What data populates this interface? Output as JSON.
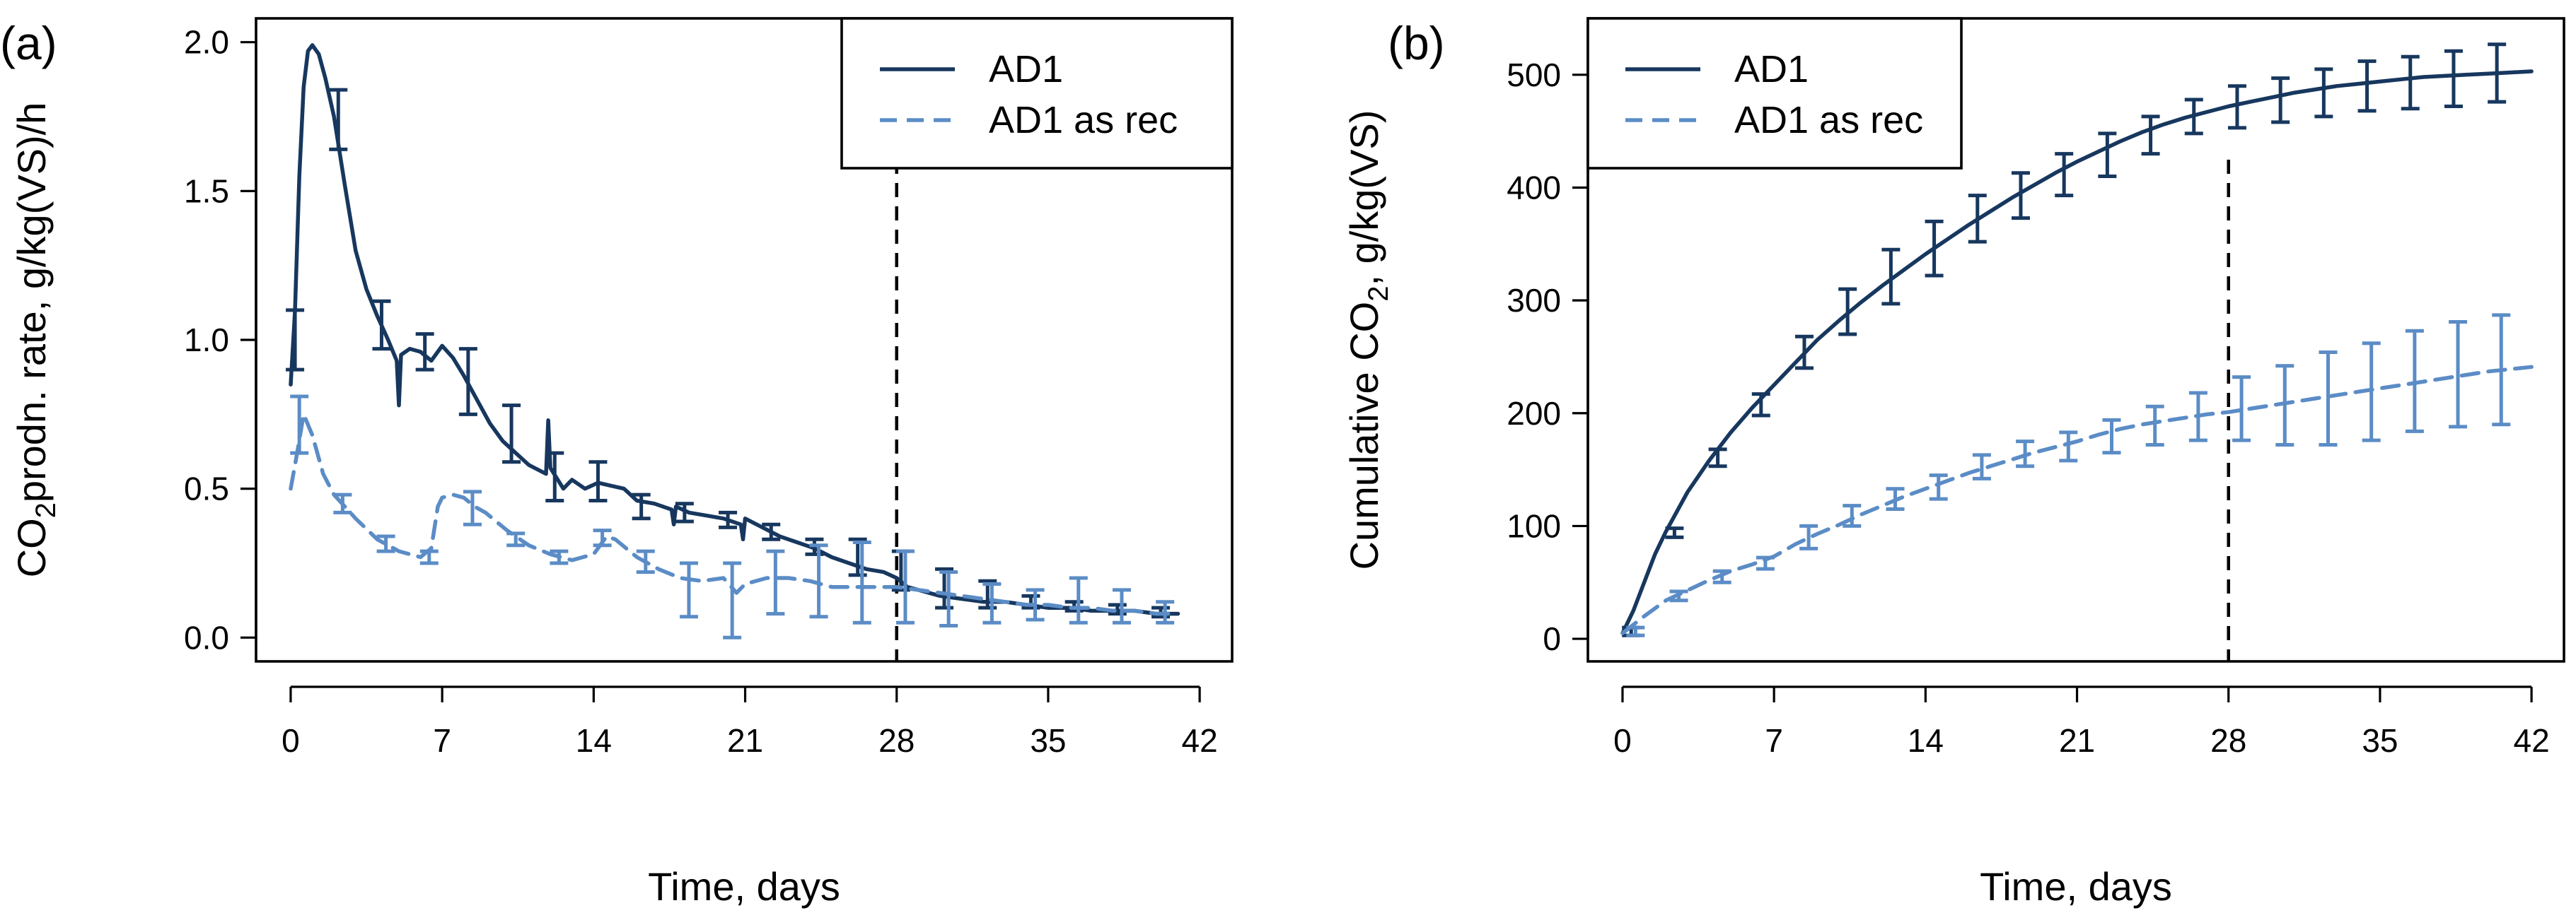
{
  "chart_data": [
    {
      "panel": "(a)",
      "type": "line",
      "xlabel": "Time, days",
      "ylabel_main": "CO",
      "ylabel_sub": "2",
      "ylabel_rest": "prodn. rate, g/kg(VS)/h",
      "xlim": [
        -1.6,
        43.5
      ],
      "ylim": [
        -0.08,
        2.08
      ],
      "x_ticks": [
        0,
        7,
        14,
        21,
        28,
        35,
        42
      ],
      "x_tick_labels": [
        "0",
        "7",
        "14",
        "21",
        "28",
        "35",
        "42"
      ],
      "y_ticks": [
        0,
        0.5,
        1,
        1.5,
        2
      ],
      "y_tick_labels": [
        "0.0",
        "0.5",
        "1.0",
        "1.5",
        "2.0"
      ],
      "vline_x": 28,
      "legend_position": "top-right",
      "series": [
        {
          "name": "AD1",
          "style": "solid",
          "color": "#17375e",
          "x": [
            0,
            0.2,
            0.4,
            0.6,
            0.8,
            1.0,
            1.3,
            1.6,
            2.0,
            2.5,
            3.0,
            3.5,
            4.0,
            4.5,
            4.9,
            5.0,
            5.1,
            5.5,
            6.0,
            6.5,
            7.0,
            7.5,
            8.0,
            8.6,
            9.2,
            9.8,
            10.4,
            11.0,
            11.8,
            11.9,
            12.0,
            12.6,
            13.0,
            13.6,
            14.2,
            14.8,
            15.4,
            16.0,
            16.8,
            17.6,
            17.7,
            17.8,
            18.4,
            19.2,
            20.0,
            20.8,
            20.9,
            21.0,
            21.8,
            22.6,
            23.4,
            24.2,
            25.0,
            25.8,
            26.6,
            27.4,
            28.0,
            28.5,
            29.0,
            30,
            31,
            32,
            33,
            34,
            35,
            36,
            37,
            38,
            39,
            40,
            41
          ],
          "y": [
            0.85,
            1.1,
            1.55,
            1.85,
            1.97,
            1.99,
            1.96,
            1.88,
            1.75,
            1.52,
            1.3,
            1.17,
            1.08,
            1.0,
            0.93,
            0.78,
            0.95,
            0.97,
            0.96,
            0.93,
            0.98,
            0.94,
            0.88,
            0.8,
            0.72,
            0.66,
            0.62,
            0.58,
            0.55,
            0.73,
            0.57,
            0.5,
            0.53,
            0.5,
            0.52,
            0.51,
            0.5,
            0.46,
            0.45,
            0.43,
            0.38,
            0.44,
            0.42,
            0.41,
            0.4,
            0.38,
            0.33,
            0.4,
            0.37,
            0.34,
            0.32,
            0.3,
            0.27,
            0.25,
            0.23,
            0.22,
            0.2,
            0.17,
            0.16,
            0.14,
            0.13,
            0.12,
            0.12,
            0.11,
            0.1,
            0.1,
            0.09,
            0.09,
            0.09,
            0.08,
            0.08
          ],
          "err_x": [
            0.2,
            2.2,
            4.2,
            6.2,
            8.2,
            10.2,
            12.2,
            14.2,
            16.2,
            18.2,
            20.2,
            22.2,
            24.2,
            26.2,
            28.2,
            30.2,
            32.2,
            34.2,
            36.2,
            38.2,
            40.2
          ],
          "err_low": [
            0.9,
            1.64,
            0.97,
            0.9,
            0.75,
            0.59,
            0.46,
            0.46,
            0.4,
            0.39,
            0.37,
            0.33,
            0.28,
            0.21,
            0.16,
            0.1,
            0.1,
            0.1,
            0.09,
            0.08,
            0.07
          ],
          "err_high": [
            1.1,
            1.84,
            1.13,
            1.02,
            0.97,
            0.78,
            0.62,
            0.59,
            0.48,
            0.45,
            0.42,
            0.38,
            0.33,
            0.33,
            0.29,
            0.23,
            0.19,
            0.14,
            0.12,
            0.11,
            0.1
          ]
        },
        {
          "name": "AD1 as rec",
          "style": "dashed",
          "color": "#5b8cc6",
          "x": [
            0,
            0.3,
            0.6,
            1.0,
            1.5,
            2.0,
            2.5,
            3.0,
            4.0,
            5.0,
            6.0,
            6.5,
            6.8,
            7.0,
            7.5,
            8.0,
            8.5,
            9.0,
            10.0,
            11.0,
            12.0,
            13.0,
            14.0,
            14.6,
            15.0,
            16.0,
            17.0,
            18.0,
            19.0,
            20.0,
            20.6,
            21.0,
            22.0,
            23.0,
            24.0,
            25.0,
            26.0,
            27.0,
            28.0,
            29.0,
            30,
            31,
            32,
            33,
            34,
            35,
            36,
            37,
            38,
            39,
            40,
            41
          ],
          "y": [
            0.5,
            0.62,
            0.75,
            0.68,
            0.55,
            0.48,
            0.44,
            0.4,
            0.33,
            0.29,
            0.27,
            0.3,
            0.44,
            0.47,
            0.48,
            0.47,
            0.44,
            0.42,
            0.36,
            0.31,
            0.28,
            0.26,
            0.28,
            0.34,
            0.33,
            0.27,
            0.23,
            0.2,
            0.19,
            0.2,
            0.15,
            0.18,
            0.2,
            0.2,
            0.19,
            0.17,
            0.17,
            0.17,
            0.17,
            0.16,
            0.15,
            0.14,
            0.13,
            0.12,
            0.11,
            0.11,
            0.1,
            0.1,
            0.09,
            0.09,
            0.08,
            0.08
          ],
          "err_x": [
            0.4,
            2.4,
            4.4,
            6.4,
            8.4,
            10.4,
            12.4,
            14.4,
            16.4,
            18.4,
            20.4,
            22.4,
            24.4,
            26.4,
            28.4,
            30.4,
            32.4,
            34.4,
            36.4,
            38.4,
            40.4
          ],
          "err_low": [
            0.62,
            0.42,
            0.29,
            0.25,
            0.38,
            0.31,
            0.25,
            0.31,
            0.22,
            0.07,
            0.0,
            0.08,
            0.07,
            0.05,
            0.05,
            0.04,
            0.05,
            0.06,
            0.05,
            0.05,
            0.05
          ],
          "err_high": [
            0.81,
            0.48,
            0.34,
            0.29,
            0.49,
            0.35,
            0.29,
            0.36,
            0.29,
            0.25,
            0.25,
            0.29,
            0.31,
            0.32,
            0.29,
            0.22,
            0.18,
            0.16,
            0.2,
            0.16,
            0.12
          ]
        }
      ]
    },
    {
      "panel": "(b)",
      "type": "line",
      "xlabel": "Time, days",
      "ylabel_main": "Cumulative CO",
      "ylabel_sub": "2",
      "ylabel_rest": ", g/kg(VS)",
      "xlim": [
        -1.6,
        43.5
      ],
      "ylim": [
        -20,
        550
      ],
      "x_ticks": [
        0,
        7,
        14,
        21,
        28,
        35,
        42
      ],
      "x_tick_labels": [
        "0",
        "7",
        "14",
        "21",
        "28",
        "35",
        "42"
      ],
      "y_ticks": [
        0,
        100,
        200,
        300,
        400,
        500
      ],
      "y_tick_labels": [
        "0",
        "100",
        "200",
        "300",
        "400",
        "500"
      ],
      "vline_x": 28,
      "legend_position": "top-left",
      "series": [
        {
          "name": "AD1",
          "style": "solid",
          "color": "#17375e",
          "x": [
            0,
            0.5,
            1.0,
            1.5,
            2.0,
            3.0,
            4.0,
            5.0,
            6.0,
            7.0,
            8.0,
            9.0,
            10,
            11,
            12,
            13,
            14,
            15,
            16,
            17,
            18,
            19,
            20,
            21,
            22,
            23,
            24,
            25,
            26,
            27,
            28,
            29,
            30,
            31,
            32,
            33,
            34,
            35,
            36,
            37,
            38,
            39,
            40,
            41,
            42
          ],
          "y": [
            5,
            25,
            50,
            75,
            95,
            130,
            158,
            183,
            205,
            225,
            245,
            265,
            282,
            298,
            313,
            327,
            341,
            354,
            367,
            379,
            391,
            402,
            413,
            423,
            432,
            441,
            449,
            456,
            462,
            467,
            472,
            476,
            480,
            484,
            487,
            490,
            492,
            494,
            496,
            498,
            499,
            500,
            501,
            502,
            503
          ],
          "err_x": [
            0.4,
            2.4,
            4.4,
            6.4,
            8.4,
            10.4,
            12.4,
            14.4,
            16.4,
            18.4,
            20.4,
            22.4,
            24.4,
            26.4,
            28.4,
            30.4,
            32.4,
            34.4,
            36.4,
            38.4,
            40.4
          ],
          "err_low": [
            3,
            90,
            153,
            198,
            240,
            270,
            297,
            322,
            352,
            373,
            393,
            410,
            430,
            448,
            453,
            458,
            463,
            468,
            470,
            472,
            476
          ],
          "err_high": [
            10,
            98,
            168,
            217,
            268,
            310,
            345,
            370,
            393,
            413,
            430,
            448,
            463,
            478,
            490,
            497,
            505,
            512,
            516,
            521,
            527
          ]
        },
        {
          "name": "AD1 as rec",
          "style": "dashed",
          "color": "#5b8cc6",
          "x": [
            0,
            1,
            2,
            3,
            4,
            5,
            6,
            7,
            8,
            9,
            10,
            11,
            12,
            13,
            14,
            15,
            16,
            17,
            18,
            19,
            20,
            21,
            22,
            23,
            24,
            25,
            26,
            27,
            28,
            29,
            30,
            31,
            32,
            33,
            34,
            35,
            36,
            37,
            38,
            39,
            40,
            41,
            42
          ],
          "y": [
            5,
            20,
            34,
            43,
            52,
            60,
            66,
            73,
            84,
            93,
            101,
            110,
            118,
            126,
            133,
            140,
            147,
            153,
            159,
            165,
            170,
            175,
            181,
            186,
            190,
            193,
            196,
            199,
            201,
            204,
            207,
            210,
            213,
            216,
            219,
            222,
            225,
            228,
            231,
            234,
            237,
            239,
            241
          ],
          "err_x": [
            0.6,
            2.6,
            4.6,
            6.6,
            8.6,
            10.6,
            12.6,
            14.6,
            16.6,
            18.6,
            20.6,
            22.6,
            24.6,
            26.6,
            28.6,
            30.6,
            32.6,
            34.6,
            36.6,
            38.6,
            40.6
          ],
          "err_low": [
            3,
            34,
            50,
            62,
            80,
            100,
            115,
            124,
            142,
            153,
            158,
            165,
            172,
            176,
            176,
            172,
            172,
            176,
            184,
            188,
            190
          ],
          "err_high": [
            10,
            42,
            60,
            72,
            100,
            118,
            133,
            145,
            163,
            175,
            183,
            194,
            206,
            218,
            232,
            242,
            254,
            262,
            273,
            281,
            287
          ]
        }
      ]
    }
  ]
}
